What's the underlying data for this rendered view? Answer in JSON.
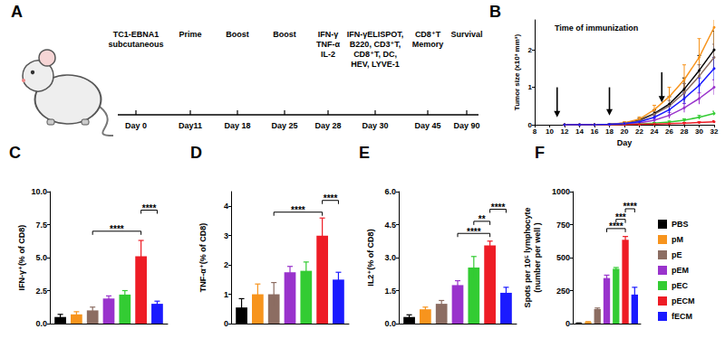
{
  "timeline": {
    "title": "A",
    "events": [
      {
        "text": "TC1-EBNA1\nsubcutaneous",
        "day": "Day 0"
      },
      {
        "text": "Prime",
        "day": "Day11"
      },
      {
        "text": "Boost",
        "day": "Day 18"
      },
      {
        "text": "Boost",
        "day": "Day 25"
      },
      {
        "text": "IFN-γ\nTNF-α\nIL-2",
        "day": "Day 28"
      },
      {
        "text": "IFN-γELISPOT,\nB220, CD3⁺T,\nCD8⁺T, DC,\nHEV, LYVE-1",
        "day": "Day 30"
      },
      {
        "text": "CD8⁺T\nMemory",
        "day": "Day 45"
      },
      {
        "text": "Survival",
        "day": "Day 90"
      }
    ]
  },
  "chart_data": [
    {
      "type": "line",
      "title": "B",
      "annotation": "Time of immunization",
      "x_label": "Day",
      "y_label": "Tumor size (x10³ mm³)",
      "x": [
        12,
        14,
        16,
        18,
        20,
        22,
        24,
        26,
        28,
        30,
        32
      ],
      "xlim": [
        8,
        32
      ],
      "xticks": [
        8,
        10,
        12,
        14,
        16,
        18,
        20,
        22,
        24,
        26,
        28,
        30,
        32
      ],
      "ylim": [
        0,
        2.8
      ],
      "yticks": [
        0,
        1,
        2
      ],
      "arrows": [
        {
          "x": 11,
          "y_from": 1.0,
          "y_to": 0.2
        },
        {
          "x": 18,
          "y_from": 1.0,
          "y_to": 0.25
        },
        {
          "x": 25,
          "y_from": 1.4,
          "y_to": 0.6
        }
      ],
      "series": [
        {
          "name": "PBS",
          "color": "#000000",
          "values": [
            0,
            0,
            0,
            0.01,
            0.04,
            0.12,
            0.3,
            0.55,
            0.95,
            1.45,
            2.0
          ],
          "errors": [
            0,
            0,
            0,
            0.01,
            0.02,
            0.05,
            0.1,
            0.2,
            0.3,
            0.4,
            0.5
          ]
        },
        {
          "name": "pM",
          "color": "#f7941d",
          "values": [
            0,
            0,
            0,
            0.01,
            0.05,
            0.15,
            0.4,
            0.75,
            1.2,
            1.8,
            2.6
          ],
          "errors": [
            0,
            0,
            0,
            0.01,
            0.03,
            0.06,
            0.12,
            0.25,
            0.4,
            0.5,
            0.5
          ]
        },
        {
          "name": "pE",
          "color": "#8c6d62",
          "values": [
            0,
            0,
            0,
            0.01,
            0.03,
            0.1,
            0.28,
            0.5,
            0.85,
            1.3,
            1.8
          ],
          "errors": [
            0,
            0,
            0,
            0.01,
            0.02,
            0.04,
            0.08,
            0.15,
            0.25,
            0.3,
            0.35
          ]
        },
        {
          "name": "pEM",
          "color": "#9933cc",
          "values": [
            0,
            0,
            0,
            0,
            0.02,
            0.05,
            0.12,
            0.25,
            0.45,
            0.7,
            1.0
          ],
          "errors": [
            0,
            0,
            0,
            0,
            0.01,
            0.02,
            0.05,
            0.08,
            0.12,
            0.15,
            0.2
          ]
        },
        {
          "name": "pEC",
          "color": "#33cc33",
          "values": [
            0,
            0,
            0,
            0,
            0.01,
            0.02,
            0.04,
            0.07,
            0.12,
            0.2,
            0.3
          ],
          "errors": [
            0,
            0,
            0,
            0,
            0.01,
            0.01,
            0.02,
            0.03,
            0.04,
            0.05,
            0.06
          ]
        },
        {
          "name": "pECM",
          "color": "#ee1c25",
          "values": [
            0,
            0,
            0,
            0,
            0,
            0.01,
            0.02,
            0.03,
            0.04,
            0.06,
            0.08
          ],
          "errors": [
            0,
            0,
            0,
            0,
            0,
            0.01,
            0.01,
            0.01,
            0.02,
            0.02,
            0.03
          ]
        },
        {
          "name": "fECM",
          "color": "#1a1aff",
          "values": [
            0,
            0,
            0,
            0.01,
            0.03,
            0.08,
            0.2,
            0.4,
            0.7,
            1.05,
            1.5
          ],
          "errors": [
            0,
            0,
            0,
            0.01,
            0.02,
            0.03,
            0.06,
            0.1,
            0.15,
            0.2,
            0.3
          ]
        }
      ]
    },
    {
      "type": "bar",
      "title": "C",
      "y_label": "IFN-γ⁺(% of CD8)",
      "categories": [
        null
      ],
      "tick_labels": "y",
      "ylim": [
        0,
        10
      ],
      "yticks": [
        {
          "value": 0,
          "label": "0.0"
        },
        2.5,
        {
          "value": 5,
          "label": "5.0"
        },
        7.5,
        {
          "value": 10,
          "label": "10.0"
        }
      ],
      "series": [
        {
          "name": "PBS",
          "color": "#000000",
          "values": [
            0.5
          ],
          "errors": [
            0.2
          ]
        },
        {
          "name": "pM",
          "color": "#f7941d",
          "values": [
            0.7
          ],
          "errors": [
            0.2
          ]
        },
        {
          "name": "pE",
          "color": "#8c6d62",
          "values": [
            1.0
          ],
          "errors": [
            0.25
          ]
        },
        {
          "name": "pEM",
          "color": "#9933cc",
          "values": [
            1.9
          ],
          "errors": [
            0.2
          ]
        },
        {
          "name": "pEC",
          "color": "#33cc33",
          "values": [
            2.2
          ],
          "errors": [
            0.3
          ]
        },
        {
          "name": "pECM",
          "color": "#ee1c25",
          "values": [
            5.1
          ],
          "errors": [
            1.2
          ]
        },
        {
          "name": "fECM",
          "color": "#1a1aff",
          "values": [
            1.5
          ],
          "errors": [
            0.2
          ]
        }
      ],
      "brackets": [
        {
          "from": "pE",
          "to": "pECM",
          "y": 7.0,
          "label": "****"
        },
        {
          "from": "pECM",
          "to": "fECM",
          "y": 8.6,
          "label": "****"
        }
      ]
    },
    {
      "type": "bar",
      "title": "D",
      "y_label": "TNF-α⁺(% of CD8)",
      "categories": [
        null
      ],
      "tick_labels": "y",
      "ylim": [
        0,
        4.5
      ],
      "yticks": [
        0,
        1,
        2,
        3,
        4
      ],
      "series": [
        {
          "name": "PBS",
          "color": "#000000",
          "values": [
            0.55
          ],
          "errors": [
            0.3
          ]
        },
        {
          "name": "pM",
          "color": "#f7941d",
          "values": [
            1.0
          ],
          "errors": [
            0.35
          ]
        },
        {
          "name": "pE",
          "color": "#8c6d62",
          "values": [
            1.0
          ],
          "errors": [
            0.4
          ]
        },
        {
          "name": "pEM",
          "color": "#9933cc",
          "values": [
            1.75
          ],
          "errors": [
            0.2
          ]
        },
        {
          "name": "pEC",
          "color": "#33cc33",
          "values": [
            1.8
          ],
          "errors": [
            0.3
          ]
        },
        {
          "name": "pECM",
          "color": "#ee1c25",
          "values": [
            3.0
          ],
          "errors": [
            0.6
          ]
        },
        {
          "name": "fECM",
          "color": "#1a1aff",
          "values": [
            1.5
          ],
          "errors": [
            0.25
          ]
        }
      ],
      "brackets": [
        {
          "from": "pE",
          "to": "pECM",
          "y": 3.8,
          "label": "****"
        },
        {
          "from": "pECM",
          "to": "fECM",
          "y": 4.2,
          "label": "****"
        }
      ]
    },
    {
      "type": "bar",
      "title": "E",
      "y_label": "IL2⁺(% of CD8)",
      "categories": [
        null
      ],
      "tick_labels": "y",
      "ylim": [
        0,
        6
      ],
      "yticks": [
        {
          "value": 0,
          "label": "0.0"
        },
        1.5,
        {
          "value": 3,
          "label": "3.0"
        },
        4.5,
        {
          "value": 6,
          "label": "6.0"
        }
      ],
      "series": [
        {
          "name": "PBS",
          "color": "#000000",
          "values": [
            0.3
          ],
          "errors": [
            0.1
          ]
        },
        {
          "name": "pM",
          "color": "#f7941d",
          "values": [
            0.65
          ],
          "errors": [
            0.1
          ]
        },
        {
          "name": "pE",
          "color": "#8c6d62",
          "values": [
            0.9
          ],
          "errors": [
            0.15
          ]
        },
        {
          "name": "pEM",
          "color": "#9933cc",
          "values": [
            1.75
          ],
          "errors": [
            0.2
          ]
        },
        {
          "name": "pEC",
          "color": "#33cc33",
          "values": [
            2.55
          ],
          "errors": [
            0.5
          ]
        },
        {
          "name": "pECM",
          "color": "#ee1c25",
          "values": [
            3.55
          ],
          "errors": [
            0.2
          ]
        },
        {
          "name": "fECM",
          "color": "#1a1aff",
          "values": [
            1.4
          ],
          "errors": [
            0.25
          ]
        }
      ],
      "brackets": [
        {
          "from": "pEM",
          "to": "pECM",
          "y": 4.1,
          "label": "****"
        },
        {
          "from": "pEC",
          "to": "pECM",
          "y": 4.65,
          "label": "**"
        },
        {
          "from": "pECM",
          "to": "fECM",
          "y": 5.2,
          "label": "****"
        }
      ]
    },
    {
      "type": "bar",
      "title": "F",
      "y_label": "Spots per 10⁵ lymphocyte\n(number per well )",
      "categories": [
        null
      ],
      "tick_labels": "y",
      "ylim": [
        0,
        1000
      ],
      "yticks": [
        0,
        250,
        500,
        750,
        1000
      ],
      "legend": "right",
      "series": [
        {
          "name": "PBS",
          "color": "#000000",
          "values": [
            3
          ],
          "errors": [
            2
          ]
        },
        {
          "name": "pM",
          "color": "#f7941d",
          "values": [
            12
          ],
          "errors": [
            3
          ]
        },
        {
          "name": "pE",
          "color": "#8c6d62",
          "values": [
            110
          ],
          "errors": [
            8
          ]
        },
        {
          "name": "pEM",
          "color": "#9933cc",
          "values": [
            345
          ],
          "errors": [
            22
          ]
        },
        {
          "name": "pEC",
          "color": "#33cc33",
          "values": [
            415
          ],
          "errors": [
            10
          ]
        },
        {
          "name": "pECM",
          "color": "#ee1c25",
          "values": [
            635
          ],
          "errors": [
            25
          ]
        },
        {
          "name": "fECM",
          "color": "#1a1aff",
          "values": [
            220
          ],
          "errors": [
            55
          ]
        }
      ],
      "brackets": [
        {
          "from": "pEM",
          "to": "pECM",
          "y": 720,
          "label": "****"
        },
        {
          "from": "pEC",
          "to": "pECM",
          "y": 790,
          "label": "***"
        },
        {
          "from": "pECM",
          "to": "fECM",
          "y": 870,
          "label": "****"
        }
      ]
    }
  ]
}
